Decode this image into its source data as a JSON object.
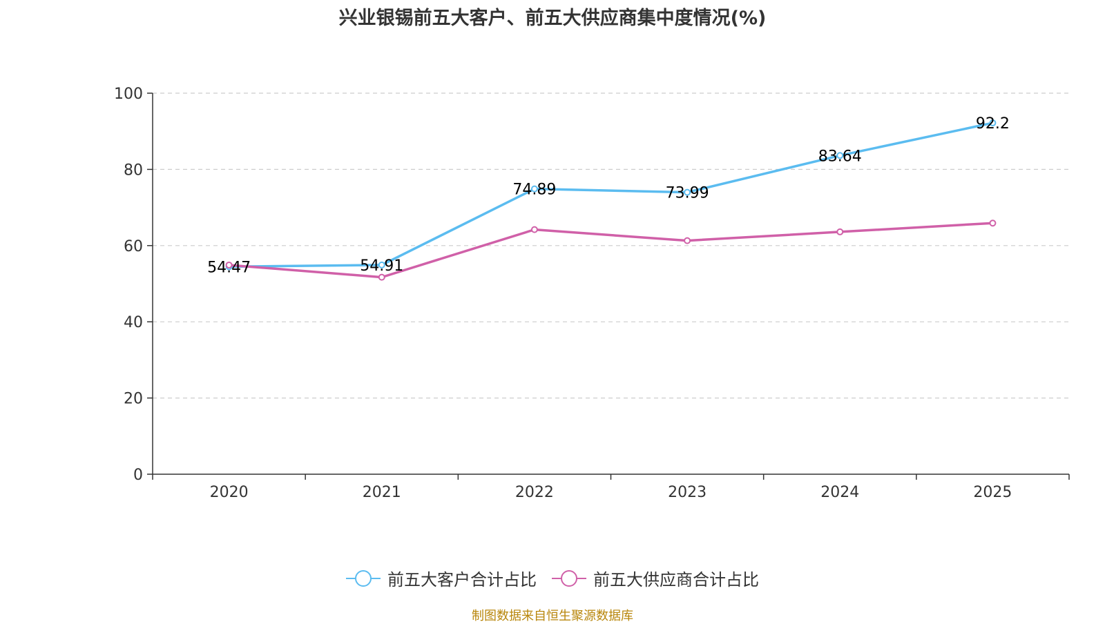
{
  "chart_data": {
    "type": "line",
    "title": "兴业银锡前五大客户、前五大供应商集中度情况(%)",
    "categories": [
      "2020",
      "2021",
      "2022",
      "2023",
      "2024",
      "2025"
    ],
    "ylim": [
      0,
      100
    ],
    "yticks": [
      0,
      20,
      40,
      60,
      80,
      100
    ],
    "grid": true,
    "legend_position": "bottom-center",
    "series": [
      {
        "name": "前五大客户合计占比",
        "color": "#5bbcf0",
        "values": [
          54.47,
          54.91,
          74.89,
          73.99,
          83.64,
          92.2
        ],
        "labels": [
          "54.47",
          "54.91",
          "74.89",
          "73.99",
          "83.64",
          "92.2"
        ],
        "show_labels": true
      },
      {
        "name": "前五大供应商合计占比",
        "color": "#d060a8",
        "values": [
          54.9,
          51.7,
          64.2,
          61.3,
          63.6,
          65.9
        ],
        "show_labels": false
      }
    ]
  },
  "source": "制图数据来自恒生聚源数据库"
}
